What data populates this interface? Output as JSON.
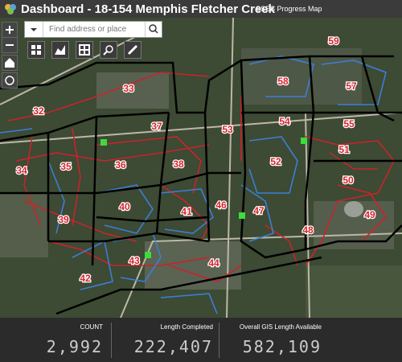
{
  "header": {
    "title": "Dashboard - 18-154 Memphis Fletcher Creek",
    "map_title": "SSES Progress Map"
  },
  "search": {
    "placeholder": "Find address or place"
  },
  "zones": [
    {
      "label": "59"
    },
    {
      "label": "58"
    },
    {
      "label": "57"
    },
    {
      "label": "33"
    },
    {
      "label": "32"
    },
    {
      "label": "37"
    },
    {
      "label": "53"
    },
    {
      "label": "54"
    },
    {
      "label": "55"
    },
    {
      "label": "51"
    },
    {
      "label": "36"
    },
    {
      "label": "38"
    },
    {
      "label": "35"
    },
    {
      "label": "34"
    },
    {
      "label": "52"
    },
    {
      "label": "50"
    },
    {
      "label": "40"
    },
    {
      "label": "41"
    },
    {
      "label": "46"
    },
    {
      "label": "47"
    },
    {
      "label": "49"
    },
    {
      "label": "39"
    },
    {
      "label": "48"
    },
    {
      "label": "43"
    },
    {
      "label": "44"
    },
    {
      "label": "42"
    }
  ],
  "stats": [
    {
      "label": "COUNT",
      "value": "2,992"
    },
    {
      "label": "Length Completed",
      "value": "222,407"
    },
    {
      "label": "Overall GIS Length Available",
      "value": "582,109"
    }
  ]
}
